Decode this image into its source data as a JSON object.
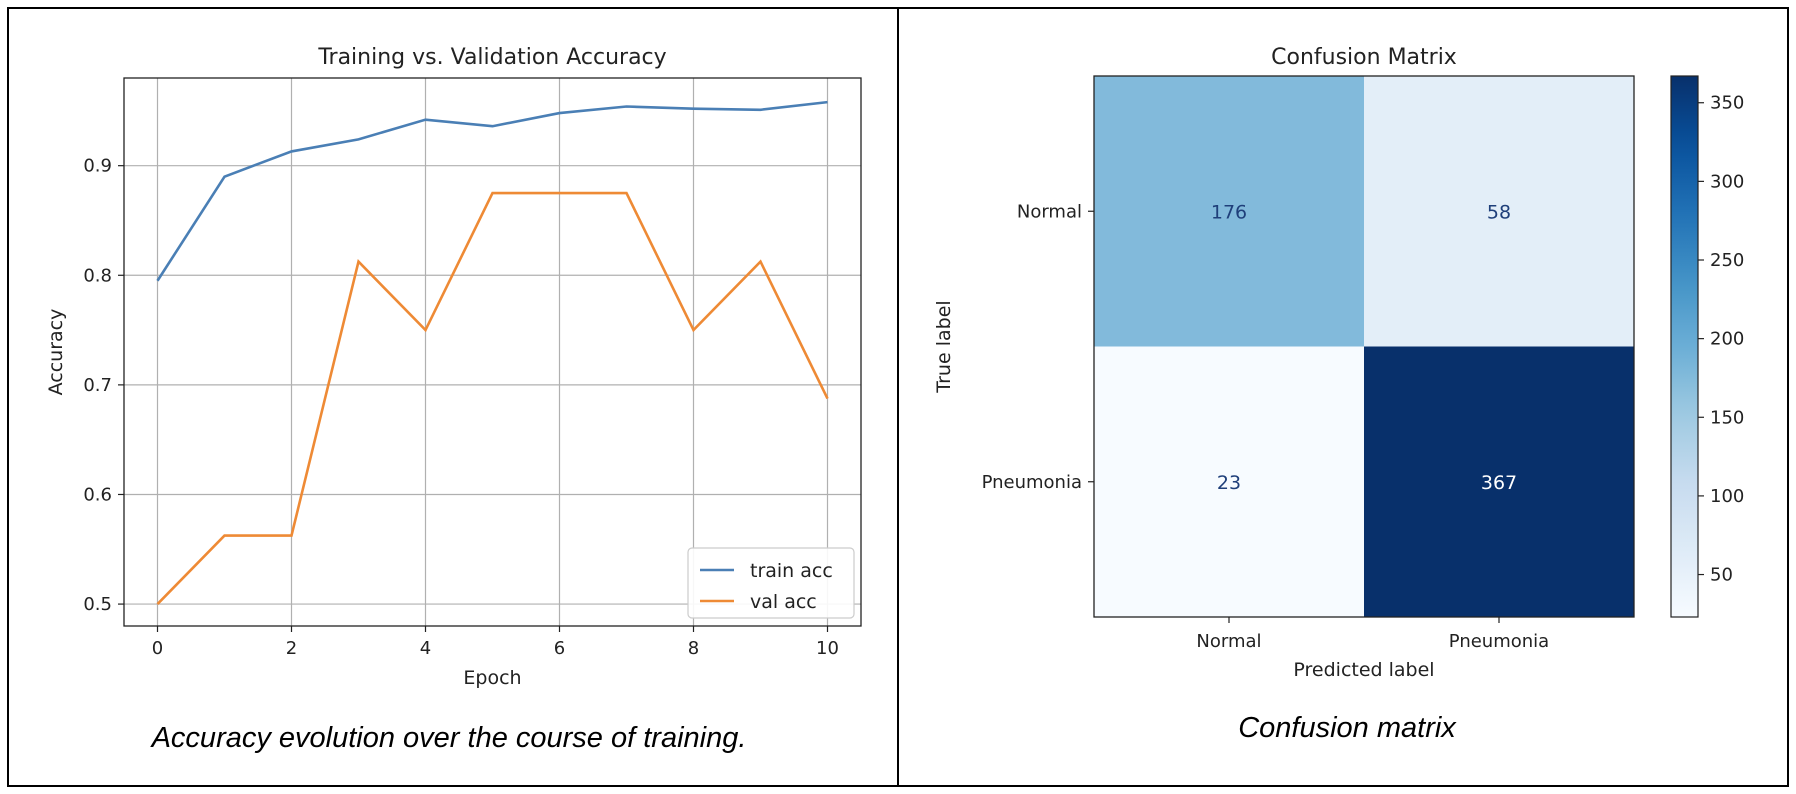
{
  "captions": {
    "left": "Accuracy evolution over the course of training.",
    "right": "Confusion matrix"
  },
  "chart_data": [
    {
      "type": "line",
      "title": "Training vs. Validation Accuracy",
      "xlabel": "Epoch",
      "ylabel": "Accuracy",
      "x": [
        0,
        1,
        2,
        3,
        4,
        5,
        6,
        7,
        8,
        9,
        10
      ],
      "xlim": [
        -0.5,
        10.5
      ],
      "ylim": [
        0.48,
        0.98
      ],
      "xticks": [
        0,
        2,
        4,
        6,
        8,
        10
      ],
      "yticks": [
        0.5,
        0.6,
        0.7,
        0.8,
        0.9
      ],
      "grid": true,
      "legend_loc": "lower-right",
      "series": [
        {
          "name": "train acc",
          "color": "#4a7fb5",
          "values": [
            0.795,
            0.89,
            0.913,
            0.924,
            0.942,
            0.936,
            0.948,
            0.954,
            0.952,
            0.951,
            0.958
          ]
        },
        {
          "name": "val acc",
          "color": "#ee8a35",
          "values": [
            0.5,
            0.5625,
            0.5625,
            0.8125,
            0.75,
            0.875,
            0.875,
            0.875,
            0.75,
            0.8125,
            0.6875
          ]
        }
      ]
    },
    {
      "type": "heatmap",
      "title": "Confusion Matrix",
      "xlabel": "Predicted label",
      "ylabel": "True label",
      "x_categories": [
        "Normal",
        "Pneumonia"
      ],
      "y_categories": [
        "Normal",
        "Pneumonia"
      ],
      "values": [
        [
          176,
          58
        ],
        [
          23,
          367
        ]
      ],
      "colorbar": {
        "min": 23,
        "max": 367,
        "ticks": [
          50,
          100,
          150,
          200,
          250,
          300,
          350
        ]
      },
      "colormap": "Blues"
    }
  ]
}
